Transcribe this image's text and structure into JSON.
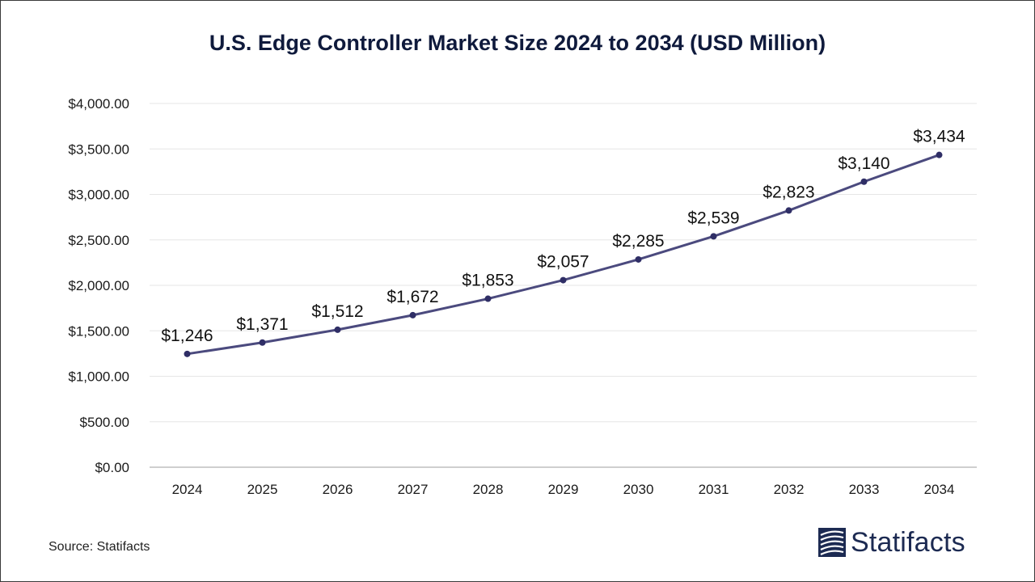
{
  "chart_data": {
    "type": "line",
    "title": "U.S. Edge Controller Market Size 2024 to 2034 (USD Million)",
    "xlabel": "",
    "ylabel": "",
    "categories": [
      "2024",
      "2025",
      "2026",
      "2027",
      "2028",
      "2029",
      "2030",
      "2031",
      "2032",
      "2033",
      "2034"
    ],
    "series": [
      {
        "name": "U.S. Edge Controller Market Size",
        "values": [
          1246,
          1371,
          1512,
          1672,
          1853,
          2057,
          2285,
          2539,
          2823,
          3140,
          3434
        ],
        "data_labels": [
          "$1,246",
          "$1,371",
          "$1,512",
          "$1,672",
          "$1,853",
          "$2,057",
          "$2,285",
          "$2,539",
          "$2,823",
          "$3,140",
          "$3,434"
        ]
      }
    ],
    "ylim": [
      0,
      4000
    ],
    "y_ticks": [
      0,
      500,
      1000,
      1500,
      2000,
      2500,
      3000,
      3500,
      4000
    ],
    "y_tick_labels": [
      "$0.00",
      "$500.00",
      "$1,000.00",
      "$1,500.00",
      "$2,000.00",
      "$2,500.00",
      "$3,000.00",
      "$3,500.00",
      "$4,000.00"
    ],
    "grid": true,
    "legend": "none"
  },
  "colors": {
    "line": "#4b4a7e",
    "marker": "#2f2e66",
    "grid": "#e6e6e6",
    "axis": "#bfbfbf",
    "title": "#0f1a3c",
    "logo": "#1c2a52"
  },
  "footer": {
    "source": "Source: Statifacts",
    "brand": "Statifacts"
  },
  "icons": {
    "logo": "statifacts-logo-icon"
  }
}
